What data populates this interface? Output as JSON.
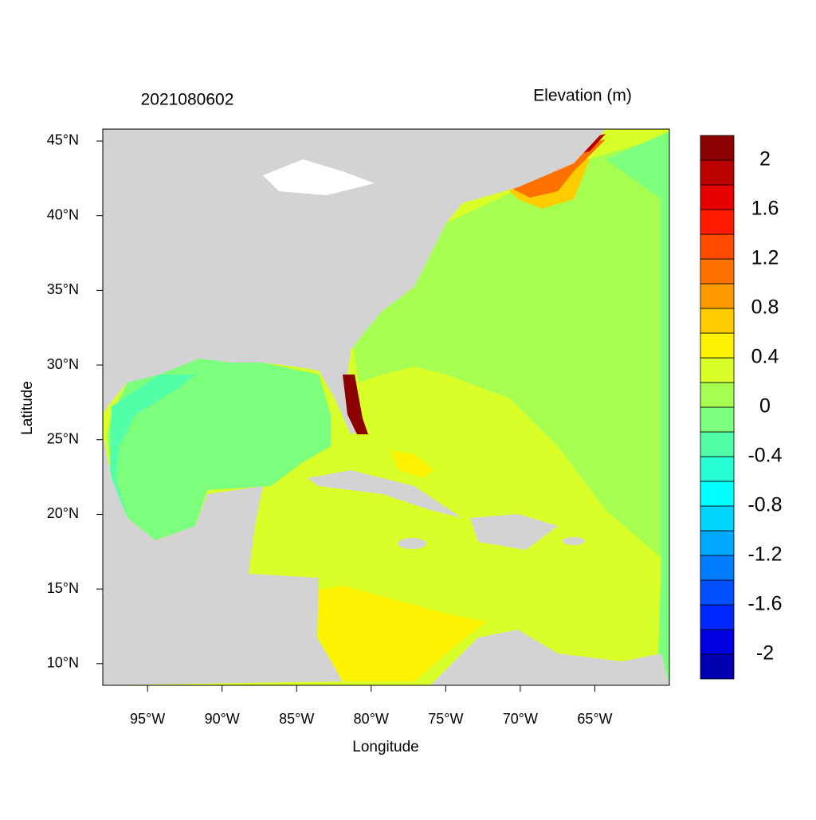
{
  "chart_data": {
    "type": "map",
    "title": "2021080602",
    "xlabel": "Longitude",
    "ylabel": "Latitude",
    "xlim": [
      -98,
      -60
    ],
    "ylim": [
      8.55,
      45.8
    ],
    "xticks": [
      {
        "value": -95,
        "label": "95°W"
      },
      {
        "value": -90,
        "label": "90°W"
      },
      {
        "value": -85,
        "label": "85°W"
      },
      {
        "value": -80,
        "label": "80°W"
      },
      {
        "value": -75,
        "label": "75°W"
      },
      {
        "value": -70,
        "label": "70°W"
      },
      {
        "value": -65,
        "label": "65°W"
      }
    ],
    "yticks": [
      {
        "value": 10,
        "label": "10°N"
      },
      {
        "value": 15,
        "label": "15°N"
      },
      {
        "value": 20,
        "label": "20°N"
      },
      {
        "value": 25,
        "label": "25°N"
      },
      {
        "value": 30,
        "label": "30°N"
      },
      {
        "value": 35,
        "label": "35°N"
      },
      {
        "value": 40,
        "label": "40°N"
      },
      {
        "value": 45,
        "label": "45°N"
      }
    ],
    "colorbar": {
      "title": "Elevation (m)",
      "levels": [
        -2.2,
        -2,
        -1.8,
        -1.6,
        -1.4,
        -1.2,
        -1,
        -0.8,
        -0.6,
        -0.4,
        -0.2,
        0,
        0.2,
        0.4,
        0.6,
        0.8,
        1,
        1.2,
        1.4,
        1.6,
        1.8,
        2,
        2.2
      ],
      "colors": [
        "#0000b0",
        "#0000e0",
        "#0028ff",
        "#0050ff",
        "#007cff",
        "#00a8ff",
        "#00d4ff",
        "#00ffff",
        "#28ffd4",
        "#52ffa8",
        "#7cff7c",
        "#a6ff50",
        "#d8ff28",
        "#fff200",
        "#ffcc00",
        "#ff9a00",
        "#ff7200",
        "#ff4a00",
        "#ff1a00",
        "#e60000",
        "#bb0000",
        "#8b0000"
      ],
      "ticks": [
        -2,
        -1.6,
        -1.2,
        -0.8,
        -0.4,
        0,
        0.4,
        0.8,
        1.2,
        1.6,
        2
      ]
    }
  }
}
